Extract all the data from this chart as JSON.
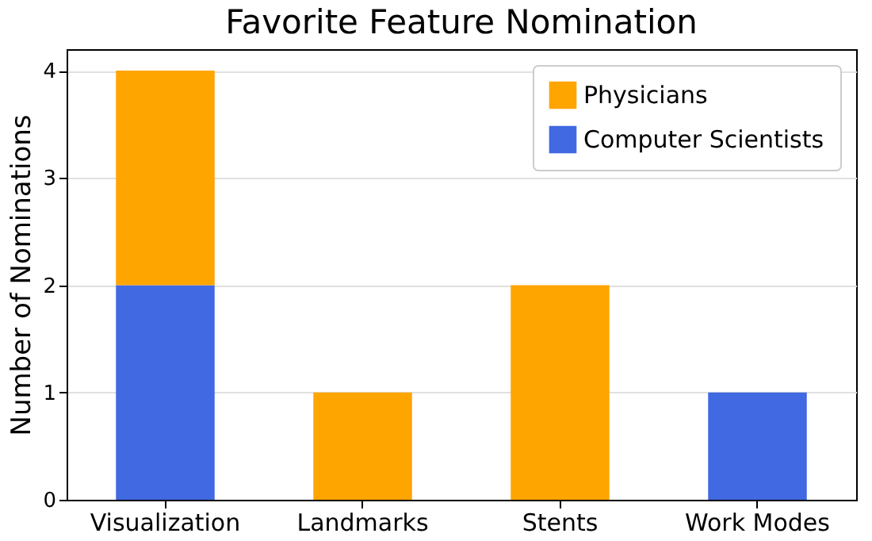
{
  "chart_data": {
    "type": "bar",
    "title": "Favorite Feature Nomination",
    "ylabel": "Number of Nominations",
    "categories": [
      "Visualization",
      "Landmarks",
      "Stents",
      "Work Modes"
    ],
    "stacked": true,
    "series": [
      {
        "name": "Computer Scientists",
        "color": "#4169e1",
        "values": [
          2,
          0,
          0,
          1
        ]
      },
      {
        "name": "Physicians",
        "color": "#ffa500",
        "values": [
          2,
          1,
          2,
          0
        ]
      }
    ],
    "ylim": [
      0,
      4.2
    ],
    "yticks": [
      0,
      1,
      2,
      3,
      4
    ],
    "grid": "y",
    "legend": "top right"
  }
}
